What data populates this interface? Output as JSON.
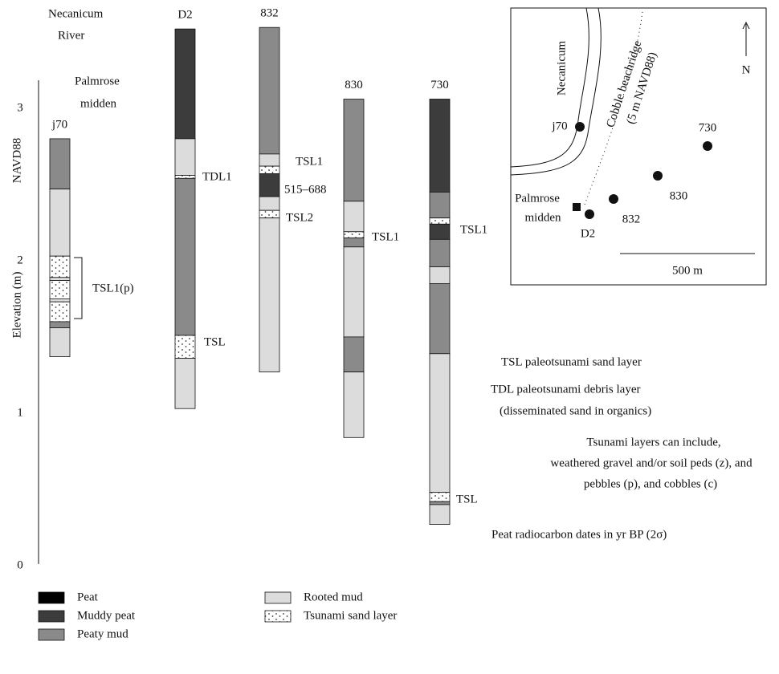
{
  "axis": {
    "title": "Elevation (m)",
    "datum": "NAVD88",
    "ylim": [
      0,
      3
    ],
    "yticks": [
      0,
      1,
      2,
      3
    ]
  },
  "columns": [
    {
      "name": "j70",
      "layers": [
        {
          "top": 2.79,
          "bottom": 2.46,
          "material": "Peaty mud"
        },
        {
          "top": 2.46,
          "bottom": 2.02,
          "material": "Rooted mud"
        },
        {
          "top": 2.02,
          "bottom": 1.88,
          "material": "Tsunami sand layer"
        },
        {
          "top": 1.88,
          "bottom": 1.86,
          "material": "Rooted mud"
        },
        {
          "top": 1.86,
          "bottom": 1.74,
          "material": "Tsunami sand layer"
        },
        {
          "top": 1.74,
          "bottom": 1.72,
          "material": "Rooted mud"
        },
        {
          "top": 1.72,
          "bottom": 1.59,
          "material": "Tsunami sand layer"
        },
        {
          "top": 1.59,
          "bottom": 1.55,
          "material": "Peaty mud"
        },
        {
          "top": 1.55,
          "bottom": 1.36,
          "material": "Rooted mud"
        }
      ]
    },
    {
      "name": "D2",
      "layers": [
        {
          "top": 3.51,
          "bottom": 2.79,
          "material": "Muddy peat"
        },
        {
          "top": 2.79,
          "bottom": 2.55,
          "material": "Rooted mud"
        },
        {
          "top": 2.55,
          "bottom": 2.53,
          "material": "Tsunami sand layer"
        },
        {
          "top": 2.53,
          "bottom": 1.5,
          "material": "Peaty mud"
        },
        {
          "top": 1.5,
          "bottom": 1.35,
          "material": "Tsunami sand layer"
        },
        {
          "top": 1.35,
          "bottom": 1.02,
          "material": "Rooted mud"
        }
      ]
    },
    {
      "name": "832",
      "layers": [
        {
          "top": 3.52,
          "bottom": 2.69,
          "material": "Peaty mud"
        },
        {
          "top": 2.69,
          "bottom": 2.61,
          "material": "Rooted mud"
        },
        {
          "top": 2.61,
          "bottom": 2.56,
          "material": "Tsunami sand layer"
        },
        {
          "top": 2.56,
          "bottom": 2.41,
          "material": "Muddy peat"
        },
        {
          "top": 2.41,
          "bottom": 2.32,
          "material": "Rooted mud"
        },
        {
          "top": 2.32,
          "bottom": 2.27,
          "material": "Tsunami sand layer"
        },
        {
          "top": 2.27,
          "bottom": 1.26,
          "material": "Rooted mud"
        }
      ]
    },
    {
      "name": "830",
      "layers": [
        {
          "top": 3.05,
          "bottom": 2.38,
          "material": "Peaty mud"
        },
        {
          "top": 2.38,
          "bottom": 2.18,
          "material": "Rooted mud"
        },
        {
          "top": 2.18,
          "bottom": 2.14,
          "material": "Tsunami sand layer"
        },
        {
          "top": 2.14,
          "bottom": 2.08,
          "material": "Peaty mud"
        },
        {
          "top": 2.08,
          "bottom": 1.49,
          "material": "Rooted mud"
        },
        {
          "top": 1.49,
          "bottom": 1.26,
          "material": "Peaty mud"
        },
        {
          "top": 1.26,
          "bottom": 0.83,
          "material": "Rooted mud"
        }
      ]
    },
    {
      "name": "730",
      "layers": [
        {
          "top": 3.05,
          "bottom": 2.44,
          "material": "Muddy peat"
        },
        {
          "top": 2.44,
          "bottom": 2.27,
          "material": "Peaty mud"
        },
        {
          "top": 2.27,
          "bottom": 2.23,
          "material": "Tsunami sand layer"
        },
        {
          "top": 2.23,
          "bottom": 2.13,
          "material": "Muddy peat"
        },
        {
          "top": 2.13,
          "bottom": 1.95,
          "material": "Peaty mud"
        },
        {
          "top": 1.95,
          "bottom": 1.84,
          "material": "Rooted mud"
        },
        {
          "top": 1.84,
          "bottom": 1.38,
          "material": "Peaty mud"
        },
        {
          "top": 1.38,
          "bottom": 0.47,
          "material": "Rooted mud"
        },
        {
          "top": 0.47,
          "bottom": 0.41,
          "material": "Tsunami sand layer"
        },
        {
          "top": 0.41,
          "bottom": 0.39,
          "material": "Peaty mud"
        },
        {
          "top": 0.39,
          "bottom": 0.26,
          "material": "Rooted mud"
        }
      ]
    }
  ],
  "annotations": [
    "TSL1(p)",
    "TDL1",
    "TSL",
    "TSL1",
    "515–688",
    "TSL2",
    "TSL1",
    "TSL1",
    "TSL"
  ],
  "place_labels": [
    "Necanicum",
    "River",
    "Palmrose",
    "midden"
  ],
  "legend": [
    {
      "name": "Peat",
      "color": "#000000"
    },
    {
      "name": "Muddy peat",
      "color": "#3c3c3c"
    },
    {
      "name": "Peaty mud",
      "color": "#8a8a8a"
    },
    {
      "name": "Rooted mud",
      "color": "#dcdcdc"
    },
    {
      "name": "Tsunami sand layer",
      "color": "pattern"
    }
  ],
  "notes": [
    "TSL paleotsunami sand layer",
    "TDL paleotsunami debris layer",
    "(disseminated sand in organics)",
    "Tsunami layers can include,",
    "weathered gravel and/or soil peds (z), and",
    "pebbles (p), and cobbles (c)",
    "Peat radiocarbon dates in yr BP (2σ)"
  ],
  "map": {
    "river": "Necanicum",
    "ridge": [
      "Cobble beachridge",
      "(5 m NAVD88)"
    ],
    "north": "N",
    "sites": [
      "j70",
      "730",
      "830",
      "832",
      "D2"
    ],
    "midden": [
      "Palmrose",
      "midden"
    ],
    "scale": "500 m"
  }
}
